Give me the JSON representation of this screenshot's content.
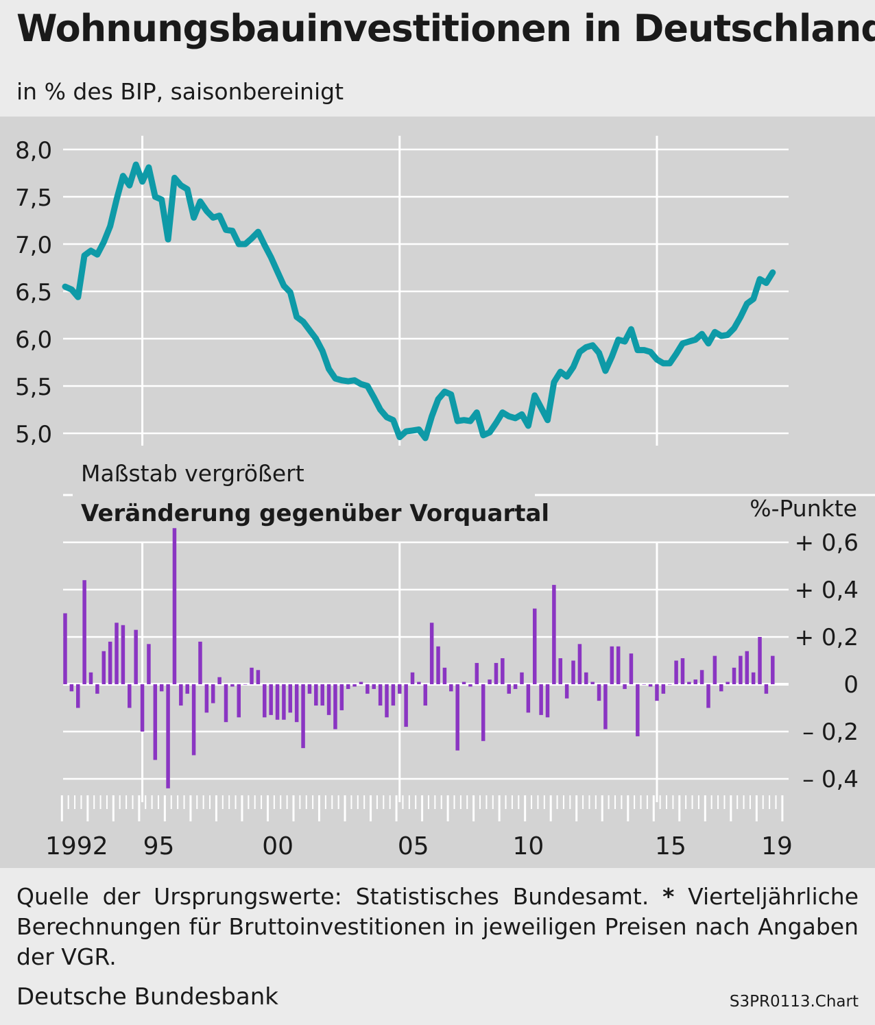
{
  "header": {
    "title": "Wohnungsbauinvestitionen in Deutschland",
    "title_marker": "*)",
    "subtitle": "in % des BIP, saisonbereinigt"
  },
  "footer": {
    "footnote_source": "Quelle der Ursprungswerte: Statistisches Bundesamt.",
    "footnote_star": "*",
    "footnote_text": "Vierteljährliche Berechnungen für Bruttoinvestitionen in jeweiligen Preisen nach Anga­ben der VGR.",
    "publisher": "Deutsche Bundesbank",
    "chart_code": "S3PR0113.Chart"
  },
  "colors": {
    "line": "#0e9aa7",
    "bar": "#8a35c2",
    "panel": "#d3d3d3",
    "gridline": "#ffffff"
  },
  "chart_data": [
    {
      "type": "line",
      "title": "",
      "xlabel": "",
      "ylabel": "",
      "annotation": "Maßstab vergrößert",
      "yticks": [
        "5,0",
        "5,5",
        "6,0",
        "6,5",
        "7,0",
        "7,5",
        "8,0"
      ],
      "ylim": [
        5.0,
        8.0
      ],
      "xticks": [
        "1992",
        "95",
        "00",
        "05",
        "10",
        "15",
        "19"
      ],
      "grid": true,
      "start_quarter": "1992 Q1",
      "series": [
        {
          "values": [
            6.55,
            6.52,
            6.44,
            6.88,
            6.93,
            6.89,
            7.02,
            7.19,
            7.47,
            7.72,
            7.62,
            7.84,
            7.66,
            7.81,
            7.5,
            7.47,
            7.05,
            7.7,
            7.62,
            7.58,
            7.28,
            7.45,
            7.35,
            7.28,
            7.3,
            7.15,
            7.14,
            7.0,
            7.0,
            7.06,
            7.13,
            6.99,
            6.86,
            6.71,
            6.56,
            6.49,
            6.23,
            6.18,
            6.09,
            6.0,
            5.87,
            5.68,
            5.58,
            5.56,
            5.55,
            5.56,
            5.52,
            5.5,
            5.38,
            5.25,
            5.17,
            5.14,
            4.96,
            5.02,
            5.03,
            5.04,
            4.95,
            5.18,
            5.36,
            5.44,
            5.41,
            5.13,
            5.14,
            5.13,
            5.22,
            4.98,
            5.01,
            5.11,
            5.22,
            5.18,
            5.16,
            5.2,
            5.08,
            5.4,
            5.27,
            5.14,
            5.54,
            5.65,
            5.6,
            5.7,
            5.86,
            5.91,
            5.93,
            5.85,
            5.66,
            5.81,
            5.99,
            5.97,
            6.1,
            5.88,
            5.88,
            5.86,
            5.78,
            5.74,
            5.74,
            5.84,
            5.95,
            5.97,
            5.99,
            6.05,
            5.95,
            6.07,
            6.03,
            6.04,
            6.11,
            6.23,
            6.37,
            6.42,
            6.63,
            6.59,
            6.7
          ]
        }
      ]
    },
    {
      "type": "bar",
      "title": "Veränderung gegenüber Vorquartal",
      "xlabel": "",
      "ylabel": "%-Punkte",
      "yticks": [
        "+ 0,6",
        "+ 0,4",
        "+ 0,2",
        "0",
        "– 0,2",
        "– 0,4"
      ],
      "ylim": [
        -0.5,
        0.65
      ],
      "xticks": [
        "1992",
        "95",
        "00",
        "05",
        "10",
        "15",
        "19"
      ],
      "grid": true,
      "start_quarter": "1992 Q1",
      "series": [
        {
          "values": [
            0.3,
            -0.03,
            -0.1,
            0.44,
            0.05,
            -0.04,
            0.14,
            0.18,
            0.26,
            0.25,
            -0.1,
            0.23,
            -0.2,
            0.17,
            -0.32,
            -0.03,
            -0.44,
            0.66,
            -0.09,
            -0.04,
            -0.3,
            0.18,
            -0.12,
            -0.08,
            0.03,
            -0.16,
            -0.01,
            -0.14,
            0.0,
            0.07,
            0.06,
            -0.14,
            -0.13,
            -0.15,
            -0.15,
            -0.12,
            -0.16,
            -0.27,
            -0.04,
            -0.09,
            -0.09,
            -0.13,
            -0.19,
            -0.11,
            -0.02,
            -0.01,
            0.01,
            -0.04,
            -0.02,
            -0.09,
            -0.14,
            -0.09,
            -0.04,
            -0.18,
            0.05,
            0.01,
            -0.09,
            0.26,
            0.16,
            0.07,
            -0.03,
            -0.28,
            0.01,
            -0.01,
            0.09,
            -0.24,
            0.02,
            0.09,
            0.11,
            -0.04,
            -0.02,
            0.05,
            -0.12,
            0.32,
            -0.13,
            -0.14,
            0.42,
            0.11,
            -0.06,
            0.1,
            0.17,
            0.05,
            0.01,
            -0.07,
            -0.19,
            0.16,
            0.16,
            -0.02,
            0.13,
            -0.22,
            0.0,
            -0.01,
            -0.07,
            -0.04,
            0.0,
            0.1,
            0.11,
            0.01,
            0.02,
            0.06,
            -0.1,
            0.12,
            -0.03,
            0.01,
            0.07,
            0.12,
            0.14,
            0.05,
            0.2,
            -0.04,
            0.12
          ]
        }
      ]
    }
  ]
}
